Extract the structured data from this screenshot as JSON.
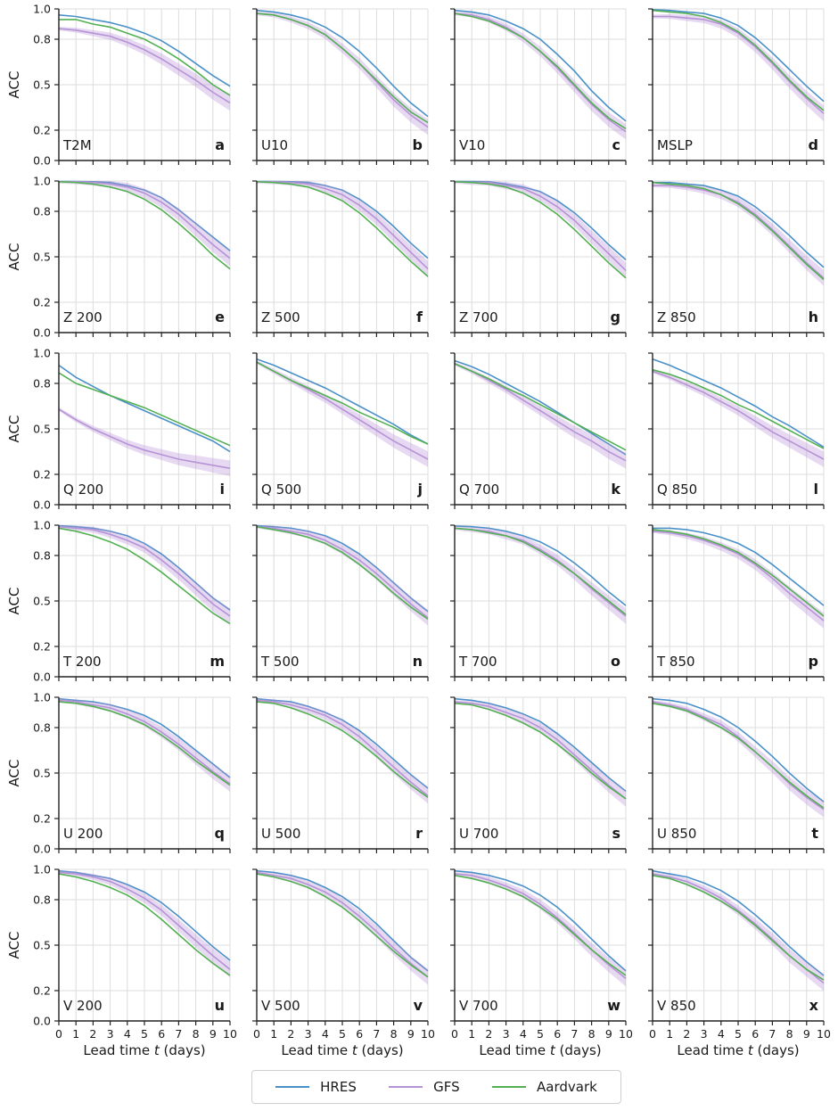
{
  "chart_data": {
    "type": "line",
    "ylabel": "ACC",
    "xlabel_prefix": "Lead time ",
    "xlabel_var": "t",
    "xlabel_suffix": " (days)",
    "xlim": [
      0,
      10
    ],
    "ylim": [
      0.0,
      1.0
    ],
    "x_ticks": [
      0,
      1,
      2,
      3,
      4,
      5,
      6,
      7,
      8,
      9,
      10
    ],
    "y_ticks": [
      0.0,
      0.2,
      0.5,
      0.8,
      1.0
    ],
    "y_tick_labels": [
      "0.0",
      "0.2",
      "0.5",
      "0.8",
      "1.0"
    ],
    "grid": true,
    "legend_position": "bottom-center",
    "x": [
      0,
      1,
      2,
      3,
      4,
      5,
      6,
      7,
      8,
      9,
      10
    ],
    "series_styles": [
      {
        "name": "HRES",
        "color": "#4a90c8"
      },
      {
        "name": "GFS",
        "color": "#b693d6"
      },
      {
        "name": "Aardvark",
        "color": "#52b052"
      }
    ],
    "panels": [
      {
        "label": "T2M",
        "letter": "a",
        "HRES": [
          0.96,
          0.95,
          0.93,
          0.91,
          0.88,
          0.84,
          0.79,
          0.72,
          0.64,
          0.56,
          0.49
        ],
        "GFS": [
          0.87,
          0.86,
          0.84,
          0.82,
          0.78,
          0.73,
          0.67,
          0.6,
          0.53,
          0.45,
          0.38
        ],
        "Aardvark": [
          0.93,
          0.93,
          0.9,
          0.88,
          0.84,
          0.8,
          0.74,
          0.67,
          0.59,
          0.5,
          0.43
        ]
      },
      {
        "label": "U10",
        "letter": "b",
        "HRES": [
          0.99,
          0.98,
          0.96,
          0.93,
          0.88,
          0.81,
          0.72,
          0.61,
          0.49,
          0.38,
          0.29
        ],
        "GFS": [
          0.97,
          0.96,
          0.93,
          0.89,
          0.83,
          0.74,
          0.64,
          0.52,
          0.4,
          0.3,
          0.22
        ],
        "Aardvark": [
          0.97,
          0.96,
          0.93,
          0.89,
          0.83,
          0.74,
          0.64,
          0.53,
          0.42,
          0.32,
          0.25
        ]
      },
      {
        "label": "V10",
        "letter": "c",
        "HRES": [
          0.99,
          0.98,
          0.96,
          0.92,
          0.87,
          0.8,
          0.7,
          0.59,
          0.46,
          0.35,
          0.26
        ],
        "GFS": [
          0.97,
          0.96,
          0.93,
          0.88,
          0.81,
          0.72,
          0.61,
          0.49,
          0.37,
          0.27,
          0.19
        ],
        "Aardvark": [
          0.97,
          0.95,
          0.92,
          0.87,
          0.81,
          0.72,
          0.62,
          0.5,
          0.38,
          0.28,
          0.21
        ]
      },
      {
        "label": "MSLP",
        "letter": "d",
        "HRES": [
          0.995,
          0.99,
          0.98,
          0.97,
          0.94,
          0.89,
          0.81,
          0.71,
          0.6,
          0.49,
          0.39
        ],
        "GFS": [
          0.95,
          0.95,
          0.94,
          0.93,
          0.9,
          0.84,
          0.75,
          0.64,
          0.52,
          0.41,
          0.31
        ],
        "Aardvark": [
          0.99,
          0.98,
          0.97,
          0.95,
          0.91,
          0.85,
          0.76,
          0.65,
          0.53,
          0.42,
          0.33
        ]
      },
      {
        "label": "Z 200",
        "letter": "e",
        "HRES": [
          0.997,
          0.997,
          0.995,
          0.99,
          0.97,
          0.94,
          0.89,
          0.81,
          0.72,
          0.63,
          0.54
        ],
        "GFS": [
          0.995,
          0.995,
          0.99,
          0.98,
          0.96,
          0.92,
          0.86,
          0.78,
          0.68,
          0.58,
          0.49
        ],
        "Aardvark": [
          0.995,
          0.99,
          0.98,
          0.96,
          0.93,
          0.88,
          0.81,
          0.72,
          0.62,
          0.51,
          0.42
        ]
      },
      {
        "label": "Z 500",
        "letter": "f",
        "HRES": [
          0.997,
          0.997,
          0.995,
          0.99,
          0.97,
          0.94,
          0.88,
          0.8,
          0.7,
          0.59,
          0.49
        ],
        "GFS": [
          0.995,
          0.995,
          0.99,
          0.98,
          0.95,
          0.91,
          0.84,
          0.75,
          0.64,
          0.53,
          0.42
        ],
        "Aardvark": [
          0.995,
          0.99,
          0.98,
          0.96,
          0.92,
          0.87,
          0.79,
          0.69,
          0.58,
          0.47,
          0.37
        ]
      },
      {
        "label": "Z 700",
        "letter": "g",
        "HRES": [
          0.997,
          0.997,
          0.995,
          0.98,
          0.96,
          0.93,
          0.87,
          0.79,
          0.69,
          0.58,
          0.48
        ],
        "GFS": [
          0.995,
          0.99,
          0.99,
          0.97,
          0.95,
          0.9,
          0.83,
          0.74,
          0.63,
          0.52,
          0.41
        ],
        "Aardvark": [
          0.995,
          0.99,
          0.98,
          0.96,
          0.92,
          0.86,
          0.78,
          0.68,
          0.57,
          0.46,
          0.36
        ]
      },
      {
        "label": "Z 850",
        "letter": "h",
        "HRES": [
          0.99,
          0.99,
          0.98,
          0.97,
          0.94,
          0.9,
          0.83,
          0.74,
          0.64,
          0.53,
          0.43
        ],
        "GFS": [
          0.97,
          0.97,
          0.96,
          0.94,
          0.91,
          0.86,
          0.78,
          0.68,
          0.57,
          0.46,
          0.36
        ],
        "Aardvark": [
          0.99,
          0.98,
          0.97,
          0.95,
          0.91,
          0.85,
          0.77,
          0.67,
          0.56,
          0.45,
          0.35
        ]
      },
      {
        "label": "Q 200",
        "letter": "i",
        "HRES": [
          0.92,
          0.84,
          0.78,
          0.72,
          0.67,
          0.62,
          0.57,
          0.52,
          0.47,
          0.42,
          0.35
        ],
        "GFS": [
          0.63,
          0.56,
          0.5,
          0.45,
          0.4,
          0.36,
          0.33,
          0.3,
          0.28,
          0.26,
          0.24
        ],
        "Aardvark": [
          0.87,
          0.8,
          0.76,
          0.72,
          0.68,
          0.64,
          0.59,
          0.54,
          0.49,
          0.44,
          0.39
        ]
      },
      {
        "label": "Q 500",
        "letter": "j",
        "HRES": [
          0.96,
          0.92,
          0.87,
          0.82,
          0.77,
          0.71,
          0.65,
          0.59,
          0.53,
          0.46,
          0.4
        ],
        "GFS": [
          0.94,
          0.88,
          0.82,
          0.76,
          0.7,
          0.63,
          0.56,
          0.49,
          0.42,
          0.36,
          0.3
        ],
        "Aardvark": [
          0.94,
          0.88,
          0.82,
          0.77,
          0.72,
          0.67,
          0.61,
          0.56,
          0.51,
          0.45,
          0.4
        ]
      },
      {
        "label": "Q 700",
        "letter": "k",
        "HRES": [
          0.95,
          0.91,
          0.86,
          0.8,
          0.74,
          0.68,
          0.61,
          0.54,
          0.47,
          0.4,
          0.33
        ],
        "GFS": [
          0.93,
          0.88,
          0.82,
          0.76,
          0.69,
          0.62,
          0.55,
          0.48,
          0.42,
          0.35,
          0.29
        ],
        "Aardvark": [
          0.93,
          0.88,
          0.83,
          0.77,
          0.72,
          0.66,
          0.6,
          0.54,
          0.48,
          0.42,
          0.36
        ]
      },
      {
        "label": "Q 850",
        "letter": "l",
        "HRES": [
          0.96,
          0.92,
          0.87,
          0.82,
          0.77,
          0.71,
          0.65,
          0.58,
          0.52,
          0.45,
          0.38
        ],
        "GFS": [
          0.88,
          0.84,
          0.79,
          0.74,
          0.68,
          0.62,
          0.55,
          0.48,
          0.42,
          0.36,
          0.3
        ],
        "Aardvark": [
          0.89,
          0.86,
          0.82,
          0.77,
          0.72,
          0.66,
          0.61,
          0.55,
          0.49,
          0.43,
          0.37
        ]
      },
      {
        "label": "T 200",
        "letter": "m",
        "HRES": [
          0.997,
          0.99,
          0.98,
          0.96,
          0.93,
          0.88,
          0.81,
          0.72,
          0.62,
          0.52,
          0.44
        ],
        "GFS": [
          0.99,
          0.98,
          0.97,
          0.94,
          0.9,
          0.85,
          0.77,
          0.68,
          0.58,
          0.48,
          0.4
        ],
        "Aardvark": [
          0.98,
          0.96,
          0.93,
          0.89,
          0.84,
          0.77,
          0.69,
          0.6,
          0.51,
          0.42,
          0.35
        ]
      },
      {
        "label": "T 500",
        "letter": "n",
        "HRES": [
          0.997,
          0.99,
          0.98,
          0.96,
          0.93,
          0.88,
          0.81,
          0.72,
          0.62,
          0.52,
          0.43
        ],
        "GFS": [
          0.99,
          0.98,
          0.96,
          0.94,
          0.9,
          0.84,
          0.77,
          0.68,
          0.58,
          0.48,
          0.39
        ],
        "Aardvark": [
          0.99,
          0.97,
          0.95,
          0.92,
          0.88,
          0.82,
          0.74,
          0.65,
          0.55,
          0.46,
          0.38
        ]
      },
      {
        "label": "T 700",
        "letter": "o",
        "HRES": [
          0.995,
          0.99,
          0.98,
          0.96,
          0.93,
          0.89,
          0.83,
          0.75,
          0.66,
          0.56,
          0.47
        ],
        "GFS": [
          0.98,
          0.97,
          0.96,
          0.93,
          0.9,
          0.84,
          0.77,
          0.68,
          0.58,
          0.49,
          0.4
        ],
        "Aardvark": [
          0.98,
          0.97,
          0.95,
          0.93,
          0.89,
          0.83,
          0.76,
          0.68,
          0.59,
          0.5,
          0.41
        ]
      },
      {
        "label": "T 850",
        "letter": "p",
        "HRES": [
          0.98,
          0.98,
          0.97,
          0.95,
          0.92,
          0.88,
          0.82,
          0.74,
          0.65,
          0.56,
          0.47
        ],
        "GFS": [
          0.96,
          0.95,
          0.93,
          0.9,
          0.86,
          0.81,
          0.74,
          0.65,
          0.55,
          0.46,
          0.37
        ],
        "Aardvark": [
          0.97,
          0.96,
          0.94,
          0.91,
          0.87,
          0.82,
          0.75,
          0.67,
          0.58,
          0.49,
          0.4
        ]
      },
      {
        "label": "U 200",
        "letter": "q",
        "HRES": [
          0.99,
          0.98,
          0.97,
          0.95,
          0.92,
          0.88,
          0.82,
          0.74,
          0.65,
          0.56,
          0.47
        ],
        "GFS": [
          0.98,
          0.97,
          0.95,
          0.93,
          0.89,
          0.84,
          0.77,
          0.69,
          0.6,
          0.51,
          0.43
        ],
        "Aardvark": [
          0.97,
          0.96,
          0.94,
          0.91,
          0.87,
          0.82,
          0.75,
          0.67,
          0.58,
          0.5,
          0.42
        ]
      },
      {
        "label": "U 500",
        "letter": "r",
        "HRES": [
          0.99,
          0.98,
          0.97,
          0.94,
          0.9,
          0.85,
          0.78,
          0.69,
          0.59,
          0.49,
          0.4
        ],
        "GFS": [
          0.98,
          0.97,
          0.95,
          0.92,
          0.88,
          0.82,
          0.74,
          0.64,
          0.54,
          0.44,
          0.35
        ],
        "Aardvark": [
          0.97,
          0.96,
          0.93,
          0.89,
          0.84,
          0.78,
          0.7,
          0.61,
          0.51,
          0.42,
          0.34
        ]
      },
      {
        "label": "U 700",
        "letter": "s",
        "HRES": [
          0.99,
          0.98,
          0.96,
          0.93,
          0.89,
          0.84,
          0.76,
          0.67,
          0.57,
          0.47,
          0.38
        ],
        "GFS": [
          0.97,
          0.96,
          0.94,
          0.9,
          0.86,
          0.8,
          0.72,
          0.62,
          0.52,
          0.42,
          0.33
        ],
        "Aardvark": [
          0.96,
          0.95,
          0.92,
          0.88,
          0.83,
          0.77,
          0.69,
          0.6,
          0.5,
          0.41,
          0.33
        ]
      },
      {
        "label": "U 850",
        "letter": "t",
        "HRES": [
          0.99,
          0.98,
          0.96,
          0.92,
          0.87,
          0.8,
          0.71,
          0.61,
          0.5,
          0.4,
          0.31
        ],
        "GFS": [
          0.97,
          0.95,
          0.92,
          0.87,
          0.82,
          0.74,
          0.64,
          0.54,
          0.43,
          0.34,
          0.26
        ],
        "Aardvark": [
          0.96,
          0.94,
          0.91,
          0.86,
          0.8,
          0.73,
          0.64,
          0.54,
          0.44,
          0.35,
          0.27
        ]
      },
      {
        "label": "V 200",
        "letter": "u",
        "HRES": [
          0.99,
          0.98,
          0.96,
          0.94,
          0.9,
          0.85,
          0.78,
          0.69,
          0.59,
          0.49,
          0.4
        ],
        "GFS": [
          0.98,
          0.97,
          0.95,
          0.92,
          0.87,
          0.81,
          0.73,
          0.63,
          0.53,
          0.43,
          0.34
        ],
        "Aardvark": [
          0.97,
          0.95,
          0.92,
          0.88,
          0.83,
          0.76,
          0.67,
          0.57,
          0.47,
          0.38,
          0.3
        ]
      },
      {
        "label": "V 500",
        "letter": "v",
        "HRES": [
          0.99,
          0.98,
          0.96,
          0.93,
          0.88,
          0.82,
          0.74,
          0.64,
          0.53,
          0.42,
          0.33
        ],
        "GFS": [
          0.98,
          0.96,
          0.94,
          0.9,
          0.85,
          0.78,
          0.69,
          0.59,
          0.48,
          0.38,
          0.29
        ],
        "Aardvark": [
          0.97,
          0.95,
          0.92,
          0.88,
          0.82,
          0.75,
          0.66,
          0.56,
          0.46,
          0.37,
          0.29
        ]
      },
      {
        "label": "V 700",
        "letter": "w",
        "HRES": [
          0.99,
          0.98,
          0.96,
          0.93,
          0.89,
          0.83,
          0.75,
          0.65,
          0.54,
          0.43,
          0.33
        ],
        "GFS": [
          0.97,
          0.96,
          0.93,
          0.89,
          0.84,
          0.77,
          0.68,
          0.58,
          0.47,
          0.37,
          0.28
        ],
        "Aardvark": [
          0.96,
          0.94,
          0.91,
          0.87,
          0.82,
          0.75,
          0.67,
          0.57,
          0.47,
          0.38,
          0.3
        ]
      },
      {
        "label": "V 850",
        "letter": "x",
        "HRES": [
          0.99,
          0.97,
          0.95,
          0.91,
          0.86,
          0.79,
          0.7,
          0.6,
          0.49,
          0.39,
          0.3
        ],
        "GFS": [
          0.97,
          0.95,
          0.92,
          0.87,
          0.81,
          0.73,
          0.64,
          0.54,
          0.43,
          0.34,
          0.25
        ],
        "Aardvark": [
          0.96,
          0.94,
          0.9,
          0.85,
          0.79,
          0.72,
          0.63,
          0.53,
          0.43,
          0.34,
          0.27
        ]
      }
    ]
  },
  "legend": {
    "hres": "HRES",
    "gfs": "GFS",
    "aardvark": "Aardvark"
  }
}
